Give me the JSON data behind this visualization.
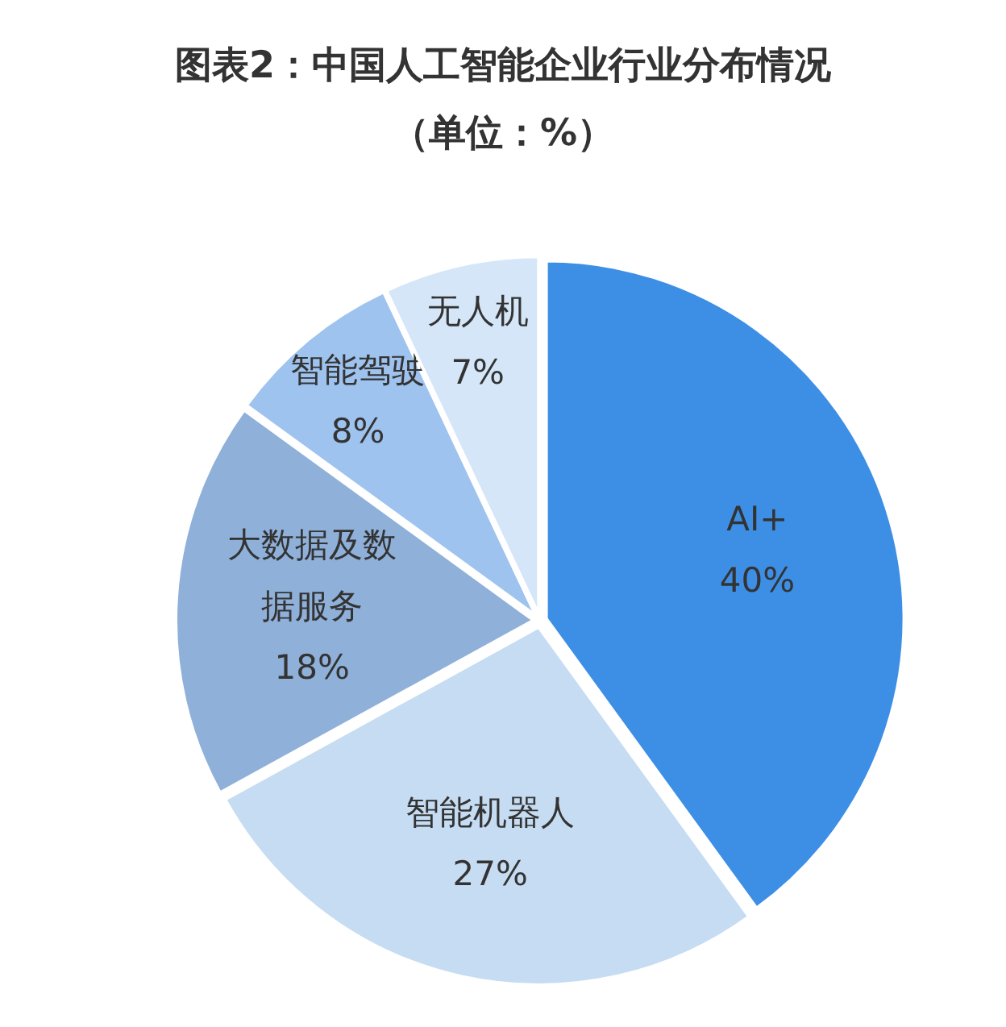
{
  "chart_data": {
    "type": "pie",
    "title": "图表2：中国人工智能企业行业分布情况",
    "subtitle": "（单位：%）",
    "categories": [
      "AI+",
      "智能机器人",
      "大数据及数据服务",
      "智能驾驶",
      "无人机"
    ],
    "values": [
      40,
      27,
      18,
      8,
      7
    ],
    "value_labels": [
      "40%",
      "27%",
      "18%",
      "8%",
      "7%"
    ],
    "colors": [
      "#3d8fe6",
      "#c6dcf3",
      "#8fb0d9",
      "#9ec3ee",
      "#d4e6f8"
    ]
  }
}
